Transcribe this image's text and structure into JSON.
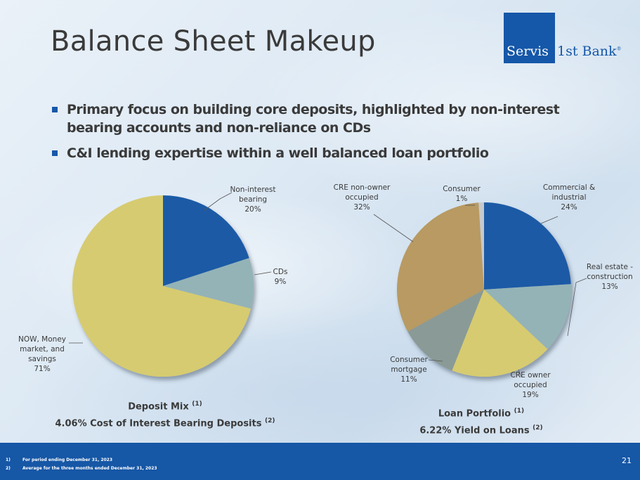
{
  "title": "Balance Sheet Makeup",
  "logo": {
    "word1": "Servis",
    "word2": "1st Bank",
    "reg": "®"
  },
  "bullets": [
    "Primary focus on building core deposits, highlighted by non-interest bearing accounts and non-reliance on CDs",
    "C&I lending expertise within a well balanced loan portfolio"
  ],
  "chart_data": [
    {
      "type": "pie",
      "slices": [
        {
          "label": [
            "Non-interest",
            "bearing",
            "20%"
          ],
          "value": 20,
          "color": "#1a5aa6"
        },
        {
          "label": [
            "CDs",
            "9%"
          ],
          "value": 9,
          "color": "#94b3b7"
        },
        {
          "label": [
            "NOW, Money",
            "market, and",
            "savings",
            "71%"
          ],
          "value": 71,
          "color": "#d6cb70"
        }
      ],
      "caption": {
        "title": "Deposit Mix",
        "title_note": "(1)",
        "subtitle": "4.06% Cost of Interest Bearing Deposits",
        "subtitle_note": "(2)"
      }
    },
    {
      "type": "pie",
      "slices": [
        {
          "label": [
            "Commercial &",
            "industrial",
            "24%"
          ],
          "value": 24,
          "color": "#1a5aa6"
        },
        {
          "label": [
            "Real estate -",
            "construction",
            "13%"
          ],
          "value": 13,
          "color": "#94b3b7"
        },
        {
          "label": [
            "CRE owner",
            "occupied",
            "19%"
          ],
          "value": 19,
          "color": "#d6cb70"
        },
        {
          "label": [
            "Consumer",
            "mortgage",
            "11%"
          ],
          "value": 11,
          "color": "#8a9a96"
        },
        {
          "label": [
            "CRE non-owner",
            "occupied",
            "32%"
          ],
          "value": 32,
          "color": "#b89a62"
        },
        {
          "label": [
            "Consumer",
            "1%"
          ],
          "value": 1,
          "color": "#c6c9cc"
        }
      ],
      "caption": {
        "title": "Loan Portfolio",
        "title_note": "(1)",
        "subtitle": "6.22% Yield on Loans",
        "subtitle_note": "(2)"
      }
    }
  ],
  "footer": {
    "notes": [
      {
        "num": "1)",
        "text": "For period ending December 31, 2023"
      },
      {
        "num": "2)",
        "text": "Average for the three months ended December 31, 2023"
      }
    ],
    "page": "21"
  }
}
